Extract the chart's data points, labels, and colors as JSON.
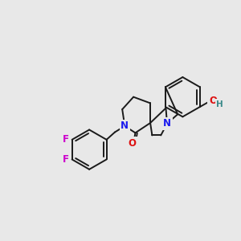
{
  "bg_color": "#e8e8e8",
  "bond_color": "#1a1a1a",
  "bond_width": 1.4,
  "atom_colors": {
    "N": "#1a1aee",
    "O_carbonyl": "#dd1111",
    "O_hydroxy": "#dd1111",
    "F": "#cc00cc",
    "H": "#3a8a8a",
    "C": "#1a1a1a"
  },
  "font_size_atom": 8.5
}
